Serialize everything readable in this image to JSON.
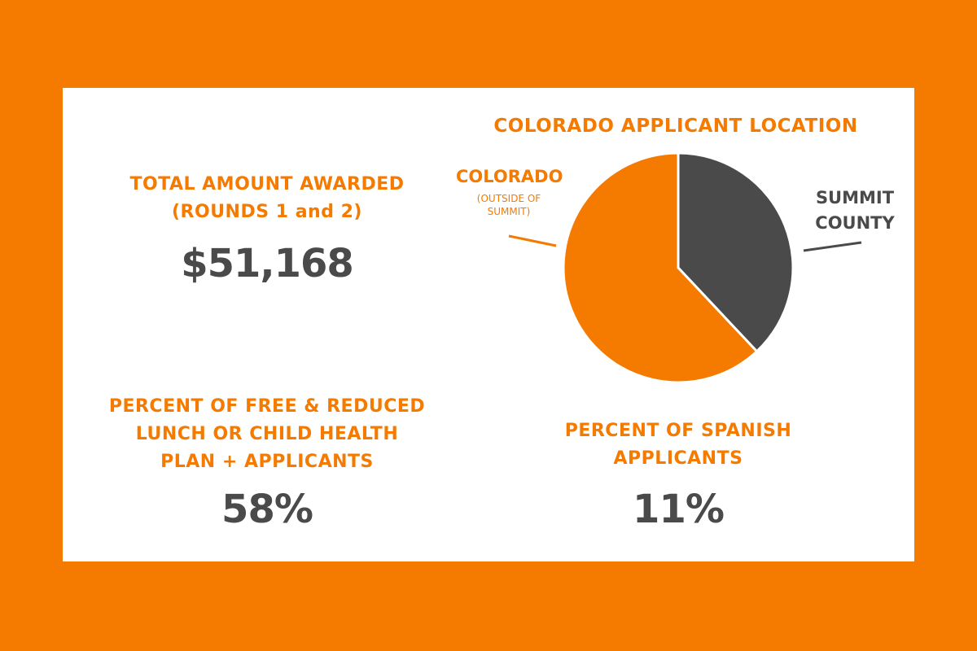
{
  "stats": [
    {
      "label_lines": [
        "TOTAL AMOUNT AWARDED",
        "(ROUNDS 1 and 2)"
      ],
      "value": "$51,168"
    },
    {
      "label_lines": [
        "PERCENT OF FREE & REDUCED",
        "LUNCH OR CHILD HEALTH",
        "PLAN + APPLICANTS"
      ],
      "value": "58%"
    },
    {
      "label_lines": [
        "PERCENT OF SPANISH",
        "APPLICANTS"
      ],
      "value": "11%"
    }
  ],
  "chart_data": {
    "type": "pie",
    "title": "COLORADO APPLICANT LOCATION",
    "categories": [
      "SUMMIT COUNTY",
      "COLORADO"
    ],
    "category_notes": [
      null,
      "(OUTSIDE OF SUMMIT)"
    ],
    "values": [
      38,
      62
    ],
    "colors": [
      "#4a4a4a",
      "#f47a00"
    ]
  }
}
